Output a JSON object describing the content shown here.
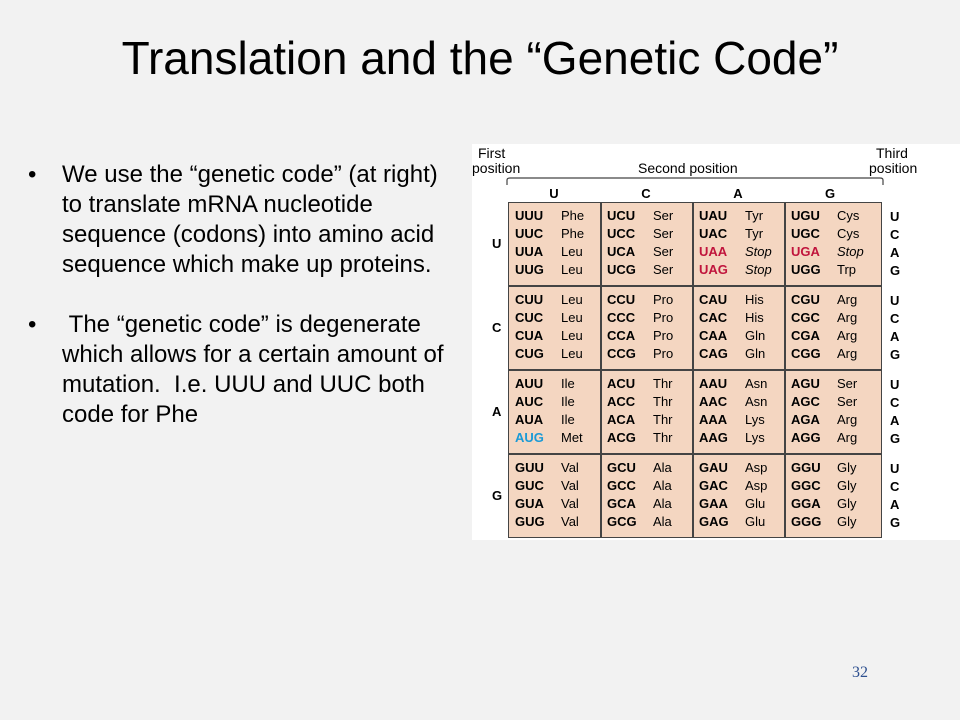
{
  "title": "Translation and the “Genetic Code”",
  "bullets": [
    "We use the “genetic code” (at right) to translate mRNA nucleotide sequence (codons) into amino acid sequence which make up proteins.",
    " The “genetic code” is degenerate which allows for a certain amount of mutation.  I.e. UUU and UUC both code for Phe"
  ],
  "bullet_marker": "•",
  "slide_number": "32",
  "codon_table": {
    "first_position_label": [
      "First",
      "position"
    ],
    "second_position_label": "Second position",
    "third_position_label": [
      "Third",
      "position"
    ],
    "bases": [
      "U",
      "C",
      "A",
      "G"
    ],
    "colors": {
      "stop": "#c0143c",
      "start": "#1a9ad6",
      "cell_bg": "#f4d6c1",
      "border": "#444444"
    },
    "rows": [
      [
        [
          [
            "UUU",
            "Phe",
            ""
          ],
          [
            "UUC",
            "Phe",
            ""
          ],
          [
            "UUA",
            "Leu",
            ""
          ],
          [
            "UUG",
            "Leu",
            ""
          ]
        ],
        [
          [
            "UCU",
            "Ser",
            ""
          ],
          [
            "UCC",
            "Ser",
            ""
          ],
          [
            "UCA",
            "Ser",
            ""
          ],
          [
            "UCG",
            "Ser",
            ""
          ]
        ],
        [
          [
            "UAU",
            "Tyr",
            ""
          ],
          [
            "UAC",
            "Tyr",
            ""
          ],
          [
            "UAA",
            "Stop",
            "stop"
          ],
          [
            "UAG",
            "Stop",
            "stop"
          ]
        ],
        [
          [
            "UGU",
            "Cys",
            ""
          ],
          [
            "UGC",
            "Cys",
            ""
          ],
          [
            "UGA",
            "Stop",
            "stop"
          ],
          [
            "UGG",
            "Trp",
            ""
          ]
        ]
      ],
      [
        [
          [
            "CUU",
            "Leu",
            ""
          ],
          [
            "CUC",
            "Leu",
            ""
          ],
          [
            "CUA",
            "Leu",
            ""
          ],
          [
            "CUG",
            "Leu",
            ""
          ]
        ],
        [
          [
            "CCU",
            "Pro",
            ""
          ],
          [
            "CCC",
            "Pro",
            ""
          ],
          [
            "CCA",
            "Pro",
            ""
          ],
          [
            "CCG",
            "Pro",
            ""
          ]
        ],
        [
          [
            "CAU",
            "His",
            ""
          ],
          [
            "CAC",
            "His",
            ""
          ],
          [
            "CAA",
            "Gln",
            ""
          ],
          [
            "CAG",
            "Gln",
            ""
          ]
        ],
        [
          [
            "CGU",
            "Arg",
            ""
          ],
          [
            "CGC",
            "Arg",
            ""
          ],
          [
            "CGA",
            "Arg",
            ""
          ],
          [
            "CGG",
            "Arg",
            ""
          ]
        ]
      ],
      [
        [
          [
            "AUU",
            "Ile",
            ""
          ],
          [
            "AUC",
            "Ile",
            ""
          ],
          [
            "AUA",
            "Ile",
            ""
          ],
          [
            "AUG",
            "Met",
            "start"
          ]
        ],
        [
          [
            "ACU",
            "Thr",
            ""
          ],
          [
            "ACC",
            "Thr",
            ""
          ],
          [
            "ACA",
            "Thr",
            ""
          ],
          [
            "ACG",
            "Thr",
            ""
          ]
        ],
        [
          [
            "AAU",
            "Asn",
            ""
          ],
          [
            "AAC",
            "Asn",
            ""
          ],
          [
            "AAA",
            "Lys",
            ""
          ],
          [
            "AAG",
            "Lys",
            ""
          ]
        ],
        [
          [
            "AGU",
            "Ser",
            ""
          ],
          [
            "AGC",
            "Ser",
            ""
          ],
          [
            "AGA",
            "Arg",
            ""
          ],
          [
            "AGG",
            "Arg",
            ""
          ]
        ]
      ],
      [
        [
          [
            "GUU",
            "Val",
            ""
          ],
          [
            "GUC",
            "Val",
            ""
          ],
          [
            "GUA",
            "Val",
            ""
          ],
          [
            "GUG",
            "Val",
            ""
          ]
        ],
        [
          [
            "GCU",
            "Ala",
            ""
          ],
          [
            "GCC",
            "Ala",
            ""
          ],
          [
            "GCA",
            "Ala",
            ""
          ],
          [
            "GCG",
            "Ala",
            ""
          ]
        ],
        [
          [
            "GAU",
            "Asp",
            ""
          ],
          [
            "GAC",
            "Asp",
            ""
          ],
          [
            "GAA",
            "Glu",
            ""
          ],
          [
            "GAG",
            "Glu",
            ""
          ]
        ],
        [
          [
            "GGU",
            "Gly",
            ""
          ],
          [
            "GGC",
            "Gly",
            ""
          ],
          [
            "GGA",
            "Gly",
            ""
          ],
          [
            "GGG",
            "Gly",
            ""
          ]
        ]
      ]
    ]
  }
}
